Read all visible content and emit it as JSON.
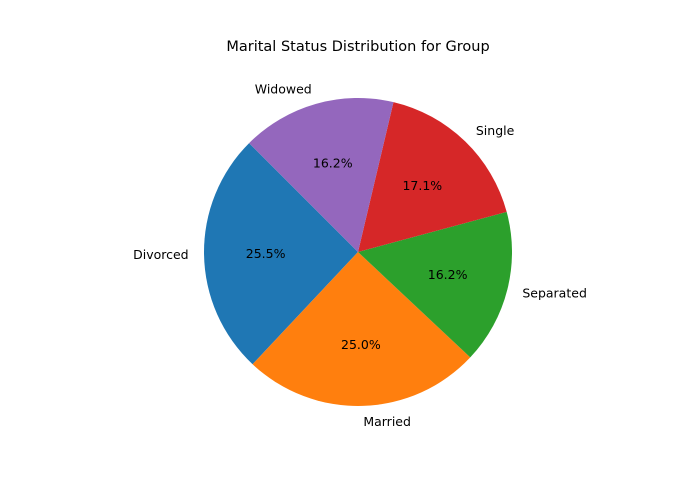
{
  "chart_data": {
    "type": "pie",
    "title": "Marital Status Distribution for Group",
    "start_angle_deg": 135,
    "direction": "counterclockwise",
    "slices": [
      {
        "label": "Divorced",
        "value": 25.5,
        "pct_label": "25.5%",
        "color": "#1f77b4"
      },
      {
        "label": "Married",
        "value": 25.0,
        "pct_label": "25.0%",
        "color": "#ff7f0e"
      },
      {
        "label": "Separated",
        "value": 16.2,
        "pct_label": "16.2%",
        "color": "#2ca02c"
      },
      {
        "label": "Single",
        "value": 17.1,
        "pct_label": "17.1%",
        "color": "#d62728"
      },
      {
        "label": "Widowed",
        "value": 16.2,
        "pct_label": "16.2%",
        "color": "#9467bd"
      }
    ]
  }
}
